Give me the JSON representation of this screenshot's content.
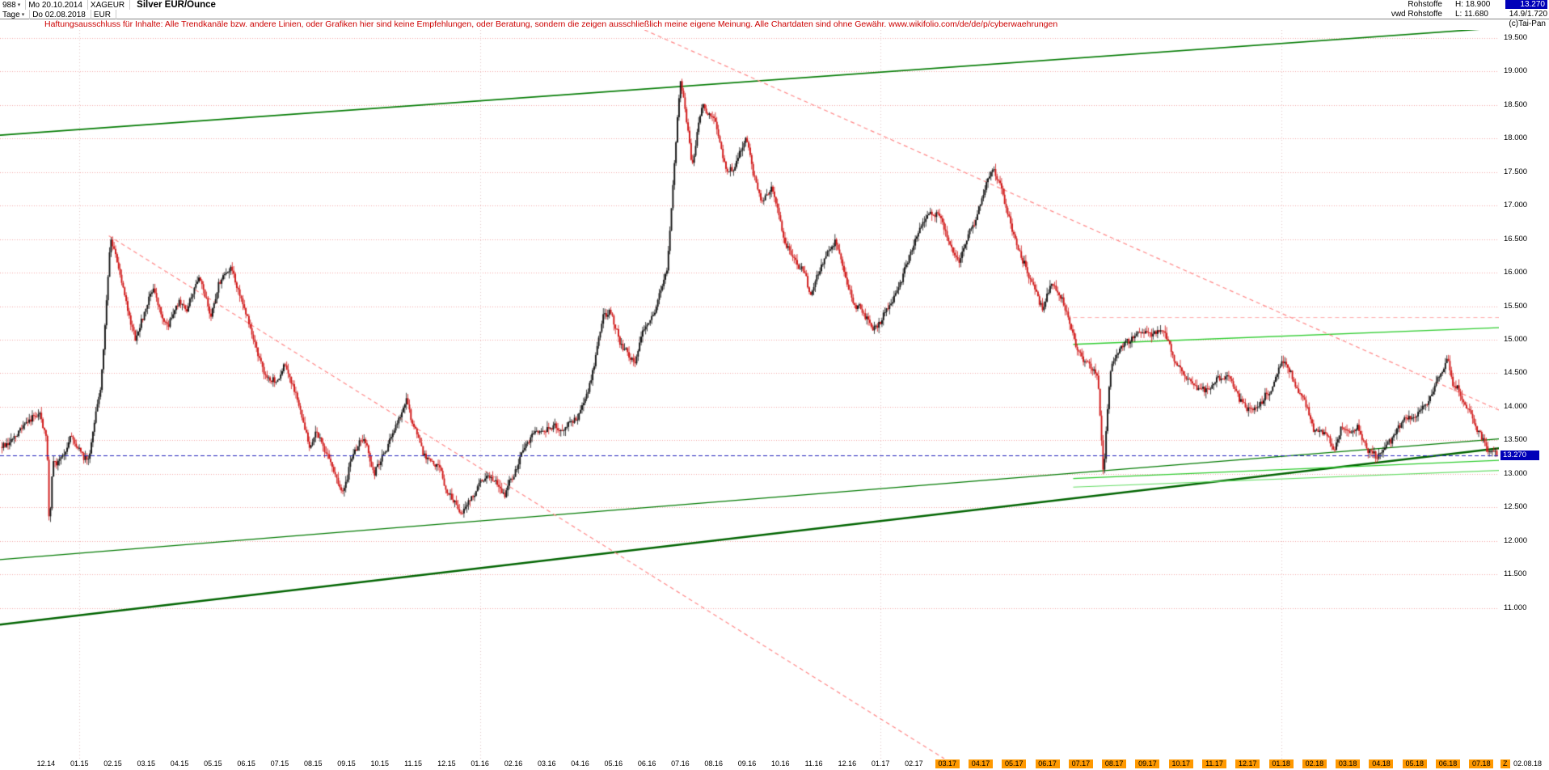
{
  "header": {
    "bars_count": "988",
    "period_start_day": "Mo 20.10.2014",
    "symbol": "XAGEUR",
    "title": "Silver EUR/Ounce",
    "timeframe": "Tage",
    "period_end_day": "Do 02.08.2018",
    "currency": "EUR",
    "group": "Rohstoffe",
    "feed": "vwd Rohstoffe",
    "high_label": "H: 18.900",
    "low_label": "L: 11.680",
    "last_price": "13.270",
    "volume": "14.9/1.720",
    "copyright": "(c)Tai-Pan"
  },
  "disclaimer": "Haftungsausschluss für Inhalte: Alle Trendkanäle bzw. andere Linien, oder Grafiken hier sind keine Empfehlungen, oder Beratung, sondern die zeigen ausschließlich meine eigene Meinung. Alle Chartdaten sind ohne Gewähr.  www.wikifolio.com/de/de/p/cyberwaehrungen",
  "footer": {
    "z_label": "Z",
    "last_date": "02.08.18"
  },
  "chart_data": {
    "type": "candlestick",
    "title": "Silver EUR/Ounce",
    "bar_count": 988,
    "last_price": 13.27,
    "last_price_label": "13.270",
    "candle_colors": {
      "up": "#151515",
      "down": "#d01818"
    },
    "y_axis": {
      "min": 8.75,
      "max": 19.62,
      "tick_values": [
        19.5,
        19.0,
        18.5,
        18.0,
        17.5,
        17.0,
        16.5,
        16.0,
        15.5,
        15.0,
        14.5,
        14.0,
        13.5,
        13.0,
        12.5,
        12.0,
        11.5,
        11.0
      ],
      "tick_labels": [
        "19.500",
        "19.000",
        "18.500",
        "18.000",
        "17.500",
        "17.000",
        "16.500",
        "16.000",
        "15.500",
        "15.000",
        "14.500",
        "14.000",
        "13.500",
        "13.000",
        "12.500",
        "12.000",
        "11.500",
        "11.000"
      ]
    },
    "x_axis": {
      "first_tick_frac": 0.0307,
      "tick_step_frac": 0.02227,
      "labels": [
        {
          "t": "12.14",
          "h": false
        },
        {
          "t": "01.15",
          "h": false
        },
        {
          "t": "02.15",
          "h": false
        },
        {
          "t": "03.15",
          "h": false
        },
        {
          "t": "04.15",
          "h": false
        },
        {
          "t": "05.15",
          "h": false
        },
        {
          "t": "06.15",
          "h": false
        },
        {
          "t": "07.15",
          "h": false
        },
        {
          "t": "08.15",
          "h": false
        },
        {
          "t": "09.15",
          "h": false
        },
        {
          "t": "10.15",
          "h": false
        },
        {
          "t": "11.15",
          "h": false
        },
        {
          "t": "12.15",
          "h": false
        },
        {
          "t": "01.16",
          "h": false
        },
        {
          "t": "02.16",
          "h": false
        },
        {
          "t": "03.16",
          "h": false
        },
        {
          "t": "04.16",
          "h": false
        },
        {
          "t": "05.16",
          "h": false
        },
        {
          "t": "06.16",
          "h": false
        },
        {
          "t": "07.16",
          "h": false
        },
        {
          "t": "08.16",
          "h": false
        },
        {
          "t": "09.16",
          "h": false
        },
        {
          "t": "10.16",
          "h": false
        },
        {
          "t": "11.16",
          "h": false
        },
        {
          "t": "12.16",
          "h": false
        },
        {
          "t": "01.17",
          "h": false
        },
        {
          "t": "02.17",
          "h": false
        },
        {
          "t": "03.17",
          "h": true
        },
        {
          "t": "04.17",
          "h": true
        },
        {
          "t": "05.17",
          "h": true
        },
        {
          "t": "06.17",
          "h": true
        },
        {
          "t": "07.17",
          "h": true
        },
        {
          "t": "08.17",
          "h": true
        },
        {
          "t": "09.17",
          "h": true
        },
        {
          "t": "10.17",
          "h": true
        },
        {
          "t": "11.17",
          "h": true
        },
        {
          "t": "12.17",
          "h": true
        },
        {
          "t": "01.18",
          "h": true
        },
        {
          "t": "02.18",
          "h": true
        },
        {
          "t": "03.18",
          "h": true
        },
        {
          "t": "04.18",
          "h": true
        },
        {
          "t": "05.18",
          "h": true
        },
        {
          "t": "06.18",
          "h": true
        },
        {
          "t": "07.18",
          "h": true
        }
      ]
    },
    "grid": {
      "h_color": "#f2a6a6",
      "v_color": "#e0c4c4",
      "vertical_at_labels": [
        "01.15",
        "01.16",
        "01.17",
        "01.18"
      ]
    },
    "anchors": [
      [
        0.0,
        13.4
      ],
      [
        0.0145,
        13.65
      ],
      [
        0.025,
        13.78
      ],
      [
        0.03,
        13.3
      ],
      [
        0.0317,
        11.95
      ],
      [
        0.034,
        13.0
      ],
      [
        0.0363,
        13.05
      ],
      [
        0.0462,
        13.55
      ],
      [
        0.058,
        13.3
      ],
      [
        0.066,
        14.3
      ],
      [
        0.0726,
        16.5
      ],
      [
        0.0798,
        15.9
      ],
      [
        0.089,
        15.1
      ],
      [
        0.1016,
        15.85
      ],
      [
        0.1108,
        15.2
      ],
      [
        0.1187,
        15.6
      ],
      [
        0.1233,
        15.4
      ],
      [
        0.1319,
        15.9
      ],
      [
        0.1398,
        15.3
      ],
      [
        0.1451,
        15.75
      ],
      [
        0.1537,
        15.95
      ],
      [
        0.1669,
        15.1
      ],
      [
        0.1754,
        14.55
      ],
      [
        0.1847,
        14.4
      ],
      [
        0.1886,
        14.65
      ],
      [
        0.1979,
        14.0
      ],
      [
        0.2058,
        13.35
      ],
      [
        0.2104,
        13.6
      ],
      [
        0.2196,
        13.15
      ],
      [
        0.2276,
        12.65
      ],
      [
        0.2322,
        13.1
      ],
      [
        0.2414,
        13.45
      ],
      [
        0.2493,
        12.95
      ],
      [
        0.2539,
        13.2
      ],
      [
        0.2632,
        13.6
      ],
      [
        0.2704,
        13.95
      ],
      [
        0.2757,
        13.6
      ],
      [
        0.2849,
        13.2
      ],
      [
        0.2929,
        13.1
      ],
      [
        0.2975,
        12.8
      ],
      [
        0.3067,
        12.45
      ],
      [
        0.3193,
        12.85
      ],
      [
        0.3285,
        12.95
      ],
      [
        0.3364,
        12.7
      ],
      [
        0.341,
        12.95
      ],
      [
        0.3503,
        13.45
      ],
      [
        0.3628,
        13.7
      ],
      [
        0.372,
        13.55
      ],
      [
        0.3845,
        13.8
      ],
      [
        0.3938,
        14.4
      ],
      [
        0.4017,
        15.4
      ],
      [
        0.4063,
        15.55
      ],
      [
        0.4156,
        14.9
      ],
      [
        0.4235,
        14.65
      ],
      [
        0.4281,
        15.1
      ],
      [
        0.4373,
        15.55
      ],
      [
        0.4452,
        16.2
      ],
      [
        0.4485,
        17.2
      ],
      [
        0.4538,
        18.85
      ],
      [
        0.4617,
        17.55
      ],
      [
        0.4683,
        18.5
      ],
      [
        0.4762,
        18.25
      ],
      [
        0.4848,
        17.35
      ],
      [
        0.4934,
        17.65
      ],
      [
        0.498,
        17.9
      ],
      [
        0.5079,
        16.95
      ],
      [
        0.5152,
        17.25
      ],
      [
        0.5244,
        16.35
      ],
      [
        0.5369,
        16.0
      ],
      [
        0.5409,
        15.65
      ],
      [
        0.5475,
        16.1
      ],
      [
        0.5574,
        16.45
      ],
      [
        0.5706,
        15.45
      ],
      [
        0.5804,
        15.35
      ],
      [
        0.5857,
        15.2
      ],
      [
        0.6022,
        15.9
      ],
      [
        0.6167,
        16.9
      ],
      [
        0.6266,
        16.95
      ],
      [
        0.6398,
        16.25
      ],
      [
        0.6629,
        17.55
      ],
      [
        0.6675,
        17.3
      ],
      [
        0.6794,
        16.3
      ],
      [
        0.6959,
        15.5
      ],
      [
        0.7025,
        15.9
      ],
      [
        0.7111,
        15.4
      ],
      [
        0.719,
        14.9
      ],
      [
        0.7329,
        14.55
      ],
      [
        0.7368,
        13.05
      ],
      [
        0.7414,
        14.5
      ],
      [
        0.75,
        14.9
      ],
      [
        0.7652,
        15.05
      ],
      [
        0.7764,
        15.1
      ],
      [
        0.785,
        14.6
      ],
      [
        0.7916,
        14.45
      ],
      [
        0.7981,
        14.3
      ],
      [
        0.8047,
        14.2
      ],
      [
        0.8127,
        14.55
      ],
      [
        0.8199,
        14.5
      ],
      [
        0.8278,
        14.15
      ],
      [
        0.8325,
        13.95
      ],
      [
        0.8377,
        13.85
      ],
      [
        0.8463,
        14.2
      ],
      [
        0.8575,
        14.6
      ],
      [
        0.8634,
        14.4
      ],
      [
        0.8707,
        14.1
      ],
      [
        0.8773,
        13.75
      ],
      [
        0.8852,
        13.55
      ],
      [
        0.8905,
        13.3
      ],
      [
        0.8958,
        13.65
      ],
      [
        0.9024,
        13.5
      ],
      [
        0.907,
        13.55
      ],
      [
        0.9136,
        13.35
      ],
      [
        0.9202,
        13.3
      ],
      [
        0.9288,
        13.45
      ],
      [
        0.9367,
        13.65
      ],
      [
        0.9433,
        13.85
      ],
      [
        0.9505,
        13.95
      ],
      [
        0.9578,
        14.25
      ],
      [
        0.963,
        14.5
      ],
      [
        0.967,
        14.8
      ],
      [
        0.9703,
        14.3
      ],
      [
        0.9749,
        14.15
      ],
      [
        0.9802,
        13.9
      ],
      [
        0.9855,
        13.7
      ],
      [
        0.9894,
        13.55
      ],
      [
        0.9947,
        13.4
      ],
      [
        1.0,
        13.27
      ]
    ],
    "lines": [
      {
        "name": "upper-trend-channel",
        "color": "#007a00",
        "width": 1.6,
        "dash": null,
        "x1": 0,
        "p1": 18.05,
        "x2": 1,
        "p2": 19.65
      },
      {
        "name": "lower-trend-channel-thick",
        "color": "#006400",
        "width": 2.6,
        "dash": null,
        "x1": 0,
        "p1": 10.75,
        "x2": 1,
        "p2": 13.38
      },
      {
        "name": "lower-trend-channel-thin",
        "color": "#007a00",
        "width": 1.2,
        "dash": null,
        "x1": 0,
        "p1": 11.72,
        "x2": 1,
        "p2": 13.52
      },
      {
        "name": "bright-resistance-line",
        "color": "#2ecc2e",
        "width": 1.3,
        "dash": null,
        "x1": 0.716,
        "p1": 14.93,
        "x2": 1,
        "p2": 15.18
      },
      {
        "name": "bright-support-line-1",
        "color": "#2ecc2e",
        "width": 1.3,
        "dash": null,
        "x1": 0.716,
        "p1": 12.93,
        "x2": 1,
        "p2": 13.2
      },
      {
        "name": "bright-support-line-2",
        "color": "#66dd66",
        "width": 1.1,
        "dash": null,
        "x1": 0.716,
        "p1": 12.8,
        "x2": 1,
        "p2": 13.05
      },
      {
        "name": "downtrend-dashed-1",
        "color": "#ff8888",
        "width": 1.2,
        "dash": [
          5,
          4
        ],
        "x1": 0.0726,
        "p1": 16.55,
        "x2": 0.63,
        "p2": 8.75
      },
      {
        "name": "downtrend-dashed-2",
        "color": "#ff8888",
        "width": 1.2,
        "dash": [
          5,
          4
        ],
        "x1": 0.43,
        "p1": 19.62,
        "x2": 1,
        "p2": 13.95
      },
      {
        "name": "pink-level-line",
        "color": "#ffaaaa",
        "width": 1.0,
        "dash": [
          5,
          4
        ],
        "x1": 0.716,
        "p1": 15.33,
        "x2": 1,
        "p2": 15.33
      }
    ],
    "last_price_line": {
      "color": "#2020bb",
      "dash": [
        5,
        3
      ]
    }
  }
}
